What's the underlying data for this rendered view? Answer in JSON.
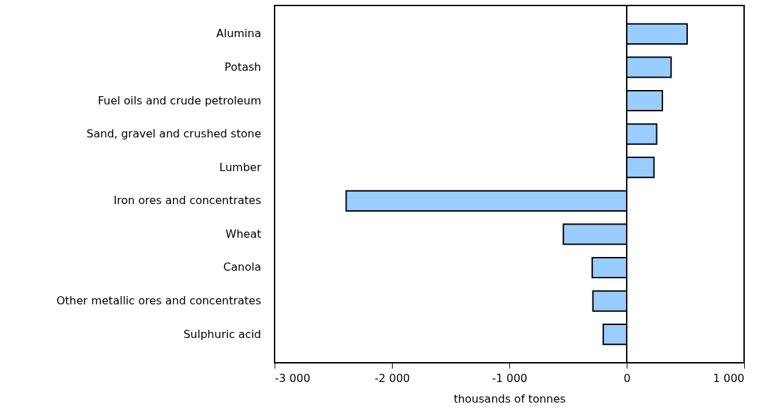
{
  "chart_data": {
    "type": "bar",
    "orientation": "horizontal",
    "categories": [
      "Alumina",
      "Potash",
      "Fuel oils and crude petroleum",
      "Sand, gravel and crushed stone",
      "Lumber",
      "Iron ores and concentrates",
      "Wheat",
      "Canola",
      "Other metallic ores and concentrates",
      "Sulphuric acid"
    ],
    "values": [
      515,
      378,
      304,
      255,
      232,
      -2390,
      -540,
      -294,
      -288,
      -200
    ],
    "color": "#99ccff",
    "xlabel": "thousands of tonnes",
    "xlim": [
      -3000,
      1000
    ],
    "xticks": [
      {
        "value": -3000,
        "label": "-3 000"
      },
      {
        "value": -2000,
        "label": "-2 000"
      },
      {
        "value": -1000,
        "label": "-1 000"
      },
      0,
      {
        "value": 1000,
        "label": "1 000"
      }
    ],
    "ref_lines": [
      {
        "axis": "x",
        "value": 0,
        "color": "#000000"
      }
    ],
    "grid": false
  }
}
